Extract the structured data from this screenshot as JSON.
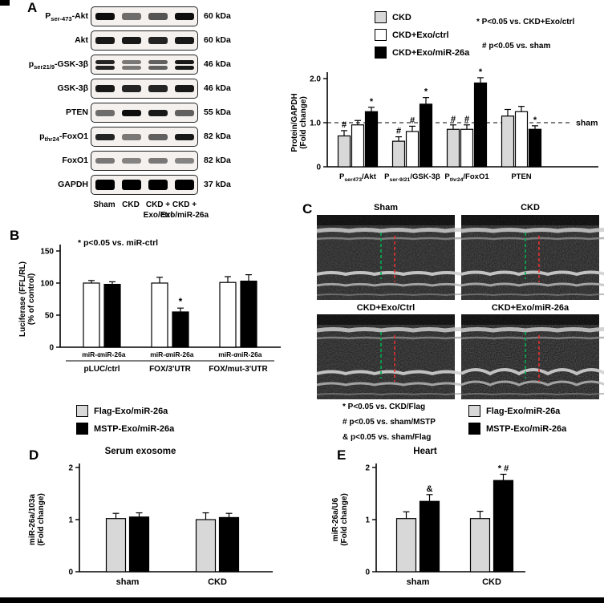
{
  "panels": {
    "a": {
      "label": "A",
      "blot": {
        "rows": [
          {
            "protein": "P_{ser-473}-Akt",
            "kda": "60 kDa",
            "bands": [
              0.95,
              0.55,
              0.65,
              0.95
            ],
            "h": 9,
            "doublet": false
          },
          {
            "protein": "Akt",
            "kda": "60 kDa",
            "bands": [
              0.9,
              0.9,
              0.85,
              0.9
            ],
            "h": 9,
            "doublet": false
          },
          {
            "protein": "p_{ser21/9}-GSK-3β",
            "kda": "46 kDa",
            "bands": [
              0.85,
              0.5,
              0.6,
              0.9
            ],
            "h": 5,
            "doublet": true
          },
          {
            "protein": "GSK-3β",
            "kda": "46 kDa",
            "bands": [
              0.9,
              0.85,
              0.85,
              0.9
            ],
            "h": 9,
            "doublet": false
          },
          {
            "protein": "PTEN",
            "kda": "55 kDa",
            "bands": [
              0.55,
              0.95,
              0.9,
              0.6
            ],
            "h": 8,
            "doublet": false
          },
          {
            "protein": "p_{thr24}-FoxO1",
            "kda": "82 kDa",
            "bands": [
              0.85,
              0.5,
              0.6,
              0.9
            ],
            "h": 8,
            "doublet": false
          },
          {
            "protein": "FoxO1",
            "kda": "82 kDa",
            "bands": [
              0.5,
              0.45,
              0.5,
              0.45
            ],
            "h": 7,
            "doublet": false
          },
          {
            "protein": "GAPDH",
            "kda": "37 kDa",
            "bands": [
              1,
              1,
              1,
              1
            ],
            "h": 13,
            "doublet": false
          }
        ],
        "lane_labels": [
          "Sham",
          "CKD",
          "CKD +|Exo/ctrl",
          "CKD +|Exo/miR-26a"
        ]
      },
      "legend": [
        {
          "label": "CKD",
          "fill": "#d8d8d8"
        },
        {
          "label": "CKD+Exo/ctrl",
          "fill": "#ffffff"
        },
        {
          "label": "CKD+Exo/miR-26a",
          "fill": "#000000"
        }
      ],
      "annotations": [
        "* P<0.05 vs. CKD+Exo/ctrl",
        "# p<0.05 vs. sham"
      ]
    },
    "b": {
      "label": "B",
      "annotation": "* p<0.05 vs. miR-ctrl"
    },
    "c": {
      "label": "C",
      "images": [
        {
          "title": "Sham"
        },
        {
          "title": "CKD"
        },
        {
          "title": "CKD+Exo/Ctrl"
        },
        {
          "title": "CKD+Exo/miR-26a"
        }
      ]
    },
    "d": {
      "label": "D",
      "legend": [
        {
          "label": "Flag-Exo/miR-26a",
          "fill": "#d8d8d8"
        },
        {
          "label": "MSTP-Exo/miR-26a",
          "fill": "#000000"
        }
      ]
    },
    "e": {
      "label": "E",
      "annotations": [
        "* P<0.05 vs. CKD/Flag",
        "# p<0.05 vs. sham/MSTP",
        "& p<0.05 vs. sham/Flag"
      ],
      "legend": [
        {
          "label": "Flag-Exo/miR-26a",
          "fill": "#d8d8d8"
        },
        {
          "label": "MSTP-Exo/miR-26a",
          "fill": "#000000"
        }
      ]
    }
  },
  "chart_data": [
    {
      "id": "chart-a",
      "type": "bar",
      "title": "",
      "ylabel": [
        "Protein/GAPDH",
        "(Fold change)"
      ],
      "ylim": [
        0,
        2.0
      ],
      "yticks": [
        0,
        1.0,
        2.0
      ],
      "ytick_labels": [
        "0",
        "1.0",
        "2.0"
      ],
      "categories": [
        "P_{ser473}/Akt",
        "P_{ser-9/21}/GSK-3β",
        "P_{thr24}/FoxO1",
        "PTEN"
      ],
      "hline": {
        "y": 1.0,
        "label": "sham"
      },
      "legend_position": "top",
      "grid": false,
      "series": [
        {
          "name": "CKD",
          "fill": "#d8d8d8",
          "values": [
            0.7,
            0.58,
            0.85,
            1.15
          ],
          "errors": [
            0.12,
            0.1,
            0.1,
            0.15
          ],
          "marks": [
            "#",
            "#",
            "#",
            ""
          ]
        },
        {
          "name": "CKD+Exo/ctrl",
          "fill": "#ffffff",
          "values": [
            0.95,
            0.8,
            0.85,
            1.25
          ],
          "errors": [
            0.1,
            0.12,
            0.1,
            0.12
          ],
          "marks": [
            "",
            "#",
            "#",
            ""
          ]
        },
        {
          "name": "CKD+Exo/miR-26a",
          "fill": "#000000",
          "values": [
            1.25,
            1.42,
            1.9,
            0.85
          ],
          "errors": [
            0.1,
            0.15,
            0.12,
            0.08
          ],
          "marks": [
            "*",
            "*",
            "*",
            "*"
          ]
        }
      ]
    },
    {
      "id": "chart-b",
      "type": "bar",
      "title": "",
      "ylabel": [
        "Luciferase (FFL/RL)",
        "(% of control)"
      ],
      "ylim": [
        0,
        150
      ],
      "yticks": [
        0,
        50,
        100,
        150
      ],
      "ytick_labels": [
        "0",
        "50",
        "100",
        "150"
      ],
      "categories": [
        "pLUC/ctrl",
        "FOX/3'UTR",
        "FOX/mut-3'UTR"
      ],
      "grid": false,
      "series": [
        {
          "name": "miR-c",
          "fill": "#ffffff",
          "values": [
            100,
            100,
            101
          ],
          "errors": [
            4,
            9,
            9
          ],
          "marks": [
            "",
            "",
            ""
          ]
        },
        {
          "name": "miR-26a",
          "fill": "#000000",
          "values": [
            98,
            55,
            103
          ],
          "errors": [
            4,
            6,
            10
          ],
          "marks": [
            "",
            "*",
            ""
          ]
        }
      ]
    },
    {
      "id": "chart-d",
      "type": "bar",
      "title": "Serum exosome",
      "ylabel": [
        "miR-26a/103a",
        "(Fold change)"
      ],
      "ylim": [
        0,
        2
      ],
      "yticks": [
        0,
        1,
        2
      ],
      "ytick_labels": [
        "0",
        "1",
        "2"
      ],
      "categories": [
        "sham",
        "CKD"
      ],
      "grid": false,
      "series": [
        {
          "name": "Flag-Exo/miR-26a",
          "fill": "#d8d8d8",
          "values": [
            1.02,
            1.0
          ],
          "errors": [
            0.1,
            0.13
          ],
          "marks": [
            "",
            ""
          ]
        },
        {
          "name": "MSTP-Exo/miR-26a",
          "fill": "#000000",
          "values": [
            1.05,
            1.04
          ],
          "errors": [
            0.08,
            0.08
          ],
          "marks": [
            "",
            ""
          ]
        }
      ]
    },
    {
      "id": "chart-e",
      "type": "bar",
      "title": "Heart",
      "ylabel": [
        "miR-26a/U6",
        "(Fold change)"
      ],
      "ylim": [
        0,
        2
      ],
      "yticks": [
        0,
        1,
        2
      ],
      "ytick_labels": [
        "0",
        "1",
        "2"
      ],
      "categories": [
        "sham",
        "CKD"
      ],
      "grid": false,
      "series": [
        {
          "name": "Flag-Exo/miR-26a",
          "fill": "#d8d8d8",
          "values": [
            1.02,
            1.02
          ],
          "errors": [
            0.13,
            0.14
          ],
          "marks": [
            "",
            ""
          ]
        },
        {
          "name": "MSTP-Exo/miR-26a",
          "fill": "#000000",
          "values": [
            1.35,
            1.75
          ],
          "errors": [
            0.13,
            0.12
          ],
          "marks": [
            "&",
            "* #"
          ]
        }
      ]
    }
  ]
}
